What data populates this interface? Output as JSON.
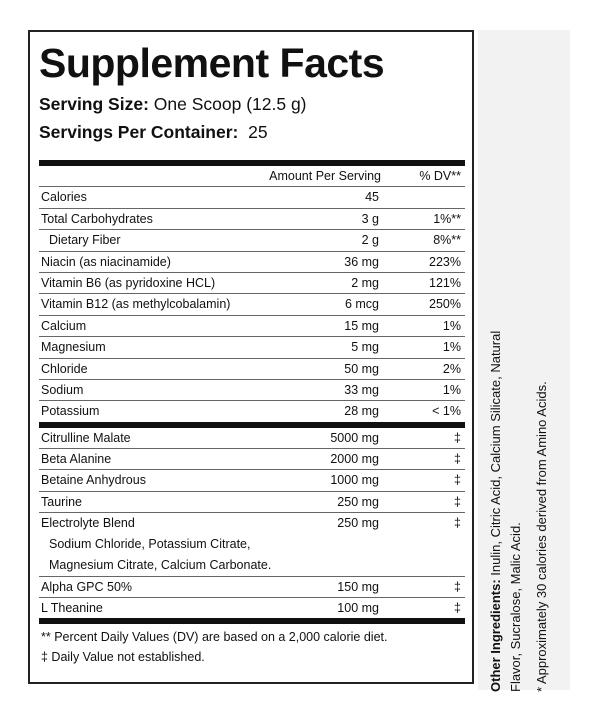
{
  "title": "Supplement Facts",
  "serving_size": {
    "label": "Serving Size:",
    "value": "One Scoop (12.5 g)"
  },
  "servings_per_container": {
    "label": "Servings Per Container:",
    "value": "25"
  },
  "header": {
    "amount": "Amount Per Serving",
    "dv": "% DV**"
  },
  "rows": [
    {
      "name": "Calories",
      "amount": "45"
    },
    {
      "name": "Total Carbohydrates",
      "amount": "3 g",
      "dv": "1%**"
    },
    {
      "name": "Dietary Fiber",
      "amount": "2 g",
      "dv": "8%**",
      "indent": true
    },
    {
      "name": "Niacin (as niacinamide)",
      "amount": "36 mg",
      "dv": "223%"
    },
    {
      "name": "Vitamin B6 (as pyridoxine HCL)",
      "amount": "2 mg",
      "dv": "121%"
    },
    {
      "name": "Vitamin B12 (as methylcobalamin)",
      "amount": "6 mcg",
      "dv": "250%"
    },
    {
      "name": "Calcium",
      "amount": "15 mg",
      "dv": "1%"
    },
    {
      "name": "Magnesium",
      "amount": "5 mg",
      "dv": "1%"
    },
    {
      "name": "Chloride",
      "amount": "50 mg",
      "dv": "2%"
    },
    {
      "name": "Sodium",
      "amount": "33 mg",
      "dv": "1%"
    },
    {
      "name": "Potassium",
      "amount": "28 mg",
      "dv": "< 1%"
    }
  ],
  "ingredients": [
    {
      "name": "Citrulline Malate",
      "amount": "5000 mg",
      "dv": "‡"
    },
    {
      "name": "Beta Alanine",
      "amount": "2000 mg",
      "dv": "‡"
    },
    {
      "name": "Betaine Anhydrous",
      "amount": "1000 mg",
      "dv": "‡"
    },
    {
      "name": "Taurine",
      "amount": "250 mg",
      "dv": "‡"
    },
    {
      "name": "Electrolyte Blend",
      "amount": "250 mg",
      "dv": "‡",
      "detail": [
        "Sodium Chloride, Potassium Citrate,",
        "Magnesium Citrate, Calcium Carbonate."
      ]
    },
    {
      "name": "Alpha GPC 50%",
      "amount": "150 mg",
      "dv": "‡"
    },
    {
      "name": "L Theanine",
      "amount": "100 mg",
      "dv": "‡"
    }
  ],
  "footnotes": [
    "** Percent Daily Values (DV) are based on a 2,000 calorie diet.",
    "‡ Daily Value not established."
  ],
  "side": {
    "label": "Other Ingredients:",
    "lines": [
      "Inulin, Citric Acid, Calcium Silicate, Natural",
      "Flavor, Sucralose, Malic Acid."
    ],
    "note": "* Approximately 30 calories derived from Amino Acids."
  }
}
